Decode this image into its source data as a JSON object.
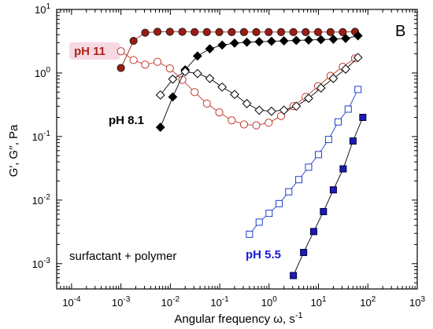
{
  "chart_data": {
    "type": "scatter",
    "panel_label": "B",
    "xlabel": "Angular frequency ω, s",
    "xlabel_exp": "-1",
    "ylabel": "G′, G′′, Pa",
    "x_scale": "log",
    "y_scale": "log",
    "xlim": [
      5e-05,
      1000
    ],
    "ylim": [
      0.0004,
      10
    ],
    "x_ticks": [
      {
        "value": 0.0001,
        "base": "10",
        "exp": "-4"
      },
      {
        "value": 0.001,
        "base": "10",
        "exp": "-3"
      },
      {
        "value": 0.01,
        "base": "10",
        "exp": "-2"
      },
      {
        "value": 0.1,
        "base": "10",
        "exp": "-1"
      },
      {
        "value": 1,
        "base": "10",
        "exp": "0"
      },
      {
        "value": 10,
        "base": "10",
        "exp": "1"
      },
      {
        "value": 100,
        "base": "10",
        "exp": "2"
      },
      {
        "value": 1000,
        "base": "10",
        "exp": "3"
      }
    ],
    "y_ticks": [
      {
        "value": 0.001,
        "base": "10",
        "exp": "-3"
      },
      {
        "value": 0.01,
        "base": "10",
        "exp": "-2"
      },
      {
        "value": 0.1,
        "base": "10",
        "exp": "-1"
      },
      {
        "value": 1,
        "base": "10",
        "exp": "0"
      },
      {
        "value": 10,
        "base": "10",
        "exp": "1"
      }
    ],
    "series": [
      {
        "marker": "circle",
        "filled": true,
        "fill": "#9e1b10",
        "stroke": "#222222",
        "line": "#9e1b10",
        "x": [
          0.001,
          0.0018,
          0.0031,
          0.0055,
          0.0098,
          0.0175,
          0.031,
          0.055,
          0.098,
          0.175,
          0.31,
          0.55,
          0.98,
          1.75,
          3.1,
          5.5,
          9.8,
          17.5,
          31,
          55
        ],
        "y": [
          1.2,
          3.2,
          4.3,
          4.45,
          4.45,
          4.45,
          4.4,
          4.4,
          4.4,
          4.4,
          4.4,
          4.4,
          4.4,
          4.4,
          4.4,
          4.4,
          4.4,
          4.4,
          4.4,
          4.45
        ]
      },
      {
        "marker": "circle",
        "filled": false,
        "fill": "#ffffff",
        "stroke": "#c0392b",
        "line": "#c0392b",
        "x": [
          0.001,
          0.0018,
          0.0031,
          0.0055,
          0.0098,
          0.0175,
          0.031,
          0.055,
          0.098,
          0.175,
          0.31,
          0.55,
          0.98,
          1.75,
          3.1,
          5.5,
          9.8,
          17.5,
          31,
          55
        ],
        "y": [
          2.2,
          1.6,
          1.35,
          1.5,
          1.18,
          0.78,
          0.5,
          0.33,
          0.24,
          0.18,
          0.155,
          0.15,
          0.165,
          0.21,
          0.3,
          0.42,
          0.62,
          0.9,
          1.25,
          1.7
        ]
      },
      {
        "marker": "diamond",
        "filled": true,
        "fill": "#000000",
        "stroke": "#000000",
        "line": "#000000",
        "x": [
          0.0063,
          0.0112,
          0.02,
          0.0355,
          0.063,
          0.112,
          0.2,
          0.355,
          0.63,
          1.12,
          2.0,
          3.55,
          6.3,
          11.2,
          20,
          35.5,
          63
        ],
        "y": [
          0.14,
          0.42,
          1.12,
          1.85,
          2.4,
          2.75,
          2.95,
          3.05,
          3.1,
          3.15,
          3.2,
          3.25,
          3.3,
          3.35,
          3.4,
          3.5,
          3.85
        ]
      },
      {
        "marker": "diamond",
        "filled": false,
        "fill": "#ffffff",
        "stroke": "#000000",
        "line": "#000000",
        "x": [
          0.0063,
          0.0112,
          0.02,
          0.0355,
          0.063,
          0.112,
          0.2,
          0.355,
          0.63,
          1.12,
          2.0,
          3.55,
          6.3,
          11.2,
          20,
          35.5,
          63
        ],
        "y": [
          0.45,
          0.8,
          1.05,
          0.98,
          0.82,
          0.6,
          0.46,
          0.33,
          0.26,
          0.25,
          0.26,
          0.3,
          0.4,
          0.58,
          0.82,
          1.15,
          1.75
        ]
      },
      {
        "marker": "square",
        "filled": false,
        "fill": "#ffffff",
        "stroke": "#1f3fcf",
        "line": "#1f3fcf",
        "x": [
          0.4,
          0.63,
          1.0,
          1.6,
          2.5,
          4.0,
          6.3,
          10,
          16,
          25,
          40,
          63
        ],
        "y": [
          0.0029,
          0.0045,
          0.0062,
          0.0088,
          0.0135,
          0.021,
          0.033,
          0.052,
          0.09,
          0.17,
          0.27,
          0.55
        ]
      },
      {
        "marker": "square",
        "filled": true,
        "fill": "#1b1bb3",
        "stroke": "#000044",
        "line": "#000000",
        "x": [
          3.1,
          5.0,
          8.0,
          12.6,
          20,
          31.6,
          50,
          79
        ],
        "y": [
          0.00065,
          0.0015,
          0.0032,
          0.0066,
          0.0145,
          0.031,
          0.085,
          0.2
        ]
      }
    ],
    "annotations": [
      {
        "text": "pH 11",
        "color": "#b02418",
        "highlight": "#f7d9e3"
      },
      {
        "text": "pH 8.1",
        "color": "#000000",
        "highlight": "none"
      },
      {
        "text": "pH 5.5",
        "color": "#1a1ad6",
        "highlight": "none"
      },
      {
        "text": "surfactant + polymer",
        "color": "#000000",
        "highlight": "none"
      }
    ]
  }
}
